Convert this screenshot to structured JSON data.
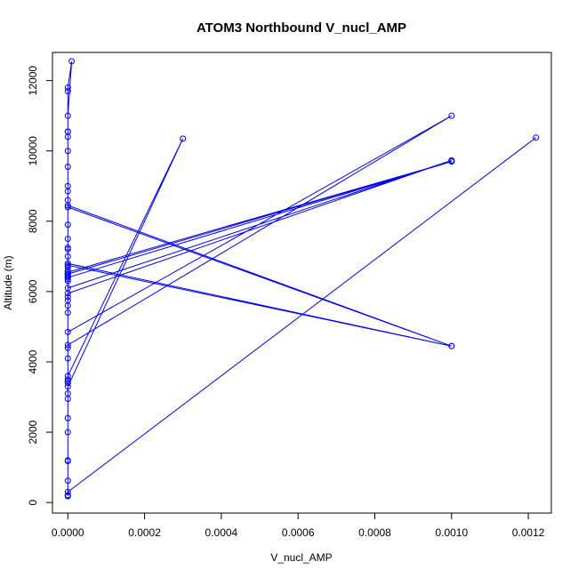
{
  "chart_data": {
    "type": "line",
    "title": "ATOM3 Northbound V_nucl_AMP",
    "xlabel": "V_nucl_AMP",
    "ylabel": "Altitude (m)",
    "xlim": [
      -4e-05,
      0.00126
    ],
    "ylim": [
      -300,
      12800
    ],
    "x_ticks": [
      0.0,
      0.0002,
      0.0004,
      0.0006,
      0.0008,
      0.001,
      0.0012
    ],
    "x_tick_labels": [
      "0.0000",
      "0.0002",
      "0.0004",
      "0.0006",
      "0.0008",
      "0.0010",
      "0.0012"
    ],
    "y_ticks": [
      0,
      2000,
      4000,
      6000,
      8000,
      10000,
      12000
    ],
    "y_tick_labels": [
      "0",
      "2000",
      "4000",
      "6000",
      "8000",
      "10000",
      "12000"
    ],
    "grid": false,
    "series_color": "#0000ff",
    "series": [
      {
        "markers": "open-circle",
        "points": [
          [
            0.0,
            180
          ],
          [
            0.0,
            200
          ],
          [
            0.0,
            210
          ],
          [
            0.0,
            620
          ],
          [
            0.0,
            1180
          ],
          [
            0.0,
            1200
          ],
          [
            0.0,
            2000
          ],
          [
            0.0,
            2400
          ],
          [
            0.0,
            2950
          ],
          [
            0.0,
            3100
          ],
          [
            0.0,
            3400
          ],
          [
            0.0,
            3500
          ],
          [
            0.0,
            3450
          ],
          [
            0.0,
            3600
          ],
          [
            0.0003,
            10350
          ],
          [
            0.0,
            3300
          ],
          [
            0.0,
            4100
          ],
          [
            0.0,
            4400
          ],
          [
            0.0,
            4480
          ],
          [
            0.001,
            11000
          ],
          [
            0.0,
            4850
          ],
          [
            0.0,
            5400
          ],
          [
            0.0,
            5600
          ],
          [
            0.0,
            5750
          ],
          [
            0.0,
            5850
          ],
          [
            0.0,
            5950
          ],
          [
            0.001,
            9730
          ],
          [
            0.0,
            6100
          ],
          [
            0.0,
            6300
          ],
          [
            0.0,
            6350
          ],
          [
            0.0,
            6400
          ],
          [
            0.0,
            6450
          ],
          [
            0.0,
            6500
          ],
          [
            0.0,
            6550
          ],
          [
            0.001,
            9700
          ],
          [
            0.0,
            6500
          ],
          [
            0.0,
            6600
          ],
          [
            0.0,
            6700
          ],
          [
            0.0,
            6750
          ],
          [
            0.001,
            4450
          ],
          [
            0.0,
            6800
          ],
          [
            0.0,
            7200
          ],
          [
            0.0,
            7250
          ],
          [
            0.0,
            7500
          ],
          [
            0.0,
            7900
          ],
          [
            0.0,
            8400
          ],
          [
            0.001,
            4450
          ],
          [
            0.0,
            8450
          ],
          [
            0.0,
            8600
          ],
          [
            0.0,
            8850
          ],
          [
            0.0,
            9550
          ],
          [
            0.0,
            10000
          ],
          [
            0.0,
            10400
          ],
          [
            0.0,
            10550
          ],
          [
            0.0,
            10550
          ],
          [
            0.0,
            11700
          ],
          [
            0.0,
            11800
          ],
          [
            1e-05,
            12550
          ],
          [
            0.0,
            11000
          ],
          [
            0.0,
            9000
          ],
          [
            0.0,
            7000
          ],
          [
            0.0,
            6400
          ],
          [
            0.001,
            9700
          ],
          [
            0.0,
            6500
          ],
          [
            0.0,
            300
          ],
          [
            0.00122,
            10380
          ]
        ]
      }
    ]
  }
}
